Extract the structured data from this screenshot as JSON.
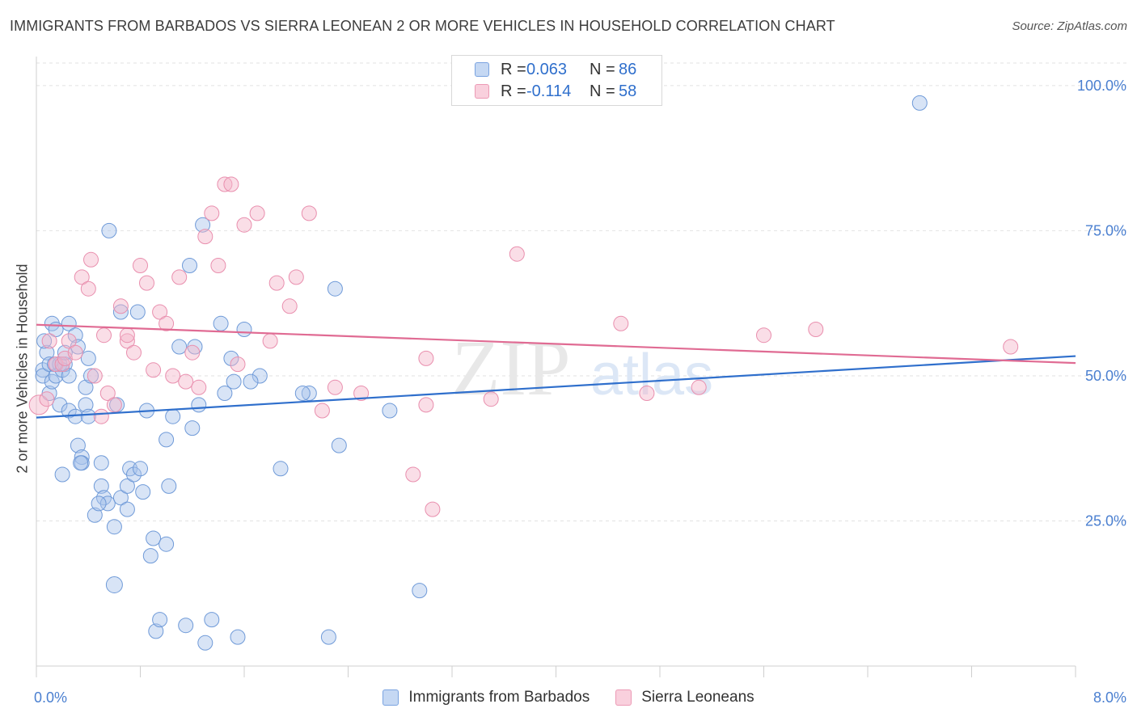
{
  "header": {
    "title": "IMMIGRANTS FROM BARBADOS VS SIERRA LEONEAN 2 OR MORE VEHICLES IN HOUSEHOLD CORRELATION CHART",
    "source": "Source: ZipAtlas.com"
  },
  "watermark": {
    "zip": "ZIP",
    "atlas": "atlas"
  },
  "legend": {
    "items": [
      {
        "r_label": "R =",
        "r_value": "0.063",
        "n_label": "N =",
        "n_value": "86"
      },
      {
        "r_label": "R =",
        "r_value": "-0.114",
        "n_label": "N =",
        "n_value": "58"
      }
    ]
  },
  "chart_data": {
    "type": "scatter",
    "title": "IMMIGRANTS FROM BARBADOS VS SIERRA LEONEAN 2 OR MORE VEHICLES IN HOUSEHOLD CORRELATION CHART",
    "xlabel": "",
    "ylabel": "2 or more Vehicles in Household",
    "xlim": [
      0,
      8
    ],
    "ylim": [
      0,
      105
    ],
    "x_tick_labels": [
      "0.0%",
      "8.0%"
    ],
    "y_tick_labels": [
      "25.0%",
      "50.0%",
      "75.0%",
      "100.0%"
    ],
    "y_ticks": [
      25,
      50,
      75,
      100
    ],
    "grid": true,
    "legend_position": "top-center",
    "colors": {
      "blue": "#a9c4ec",
      "blue_line": "#2f6fcc",
      "pink": "#f4b6ca",
      "pink_line": "#e06b93",
      "axis_text": "#4a7fd0"
    },
    "series": [
      {
        "name": "Immigrants from Barbados",
        "color": "#a9c4ec",
        "trend": {
          "x": [
            0,
            8
          ],
          "y": [
            42.8,
            53.4
          ]
        },
        "x": [
          0.05,
          0.05,
          0.08,
          0.1,
          0.1,
          0.12,
          0.12,
          0.15,
          0.15,
          0.18,
          0.18,
          0.2,
          0.2,
          0.22,
          0.25,
          0.25,
          0.25,
          0.3,
          0.3,
          0.32,
          0.32,
          0.35,
          0.35,
          0.38,
          0.38,
          0.4,
          0.4,
          0.42,
          0.45,
          0.5,
          0.5,
          0.52,
          0.55,
          0.6,
          0.6,
          0.62,
          0.65,
          0.65,
          0.7,
          0.7,
          0.72,
          0.75,
          0.8,
          0.82,
          0.85,
          0.88,
          0.9,
          0.92,
          0.95,
          1.0,
          1.0,
          1.02,
          1.05,
          1.1,
          1.15,
          1.2,
          1.22,
          1.25,
          1.28,
          1.3,
          1.35,
          1.45,
          1.5,
          1.55,
          1.6,
          1.72,
          2.1,
          2.25,
          2.3,
          2.72,
          2.95,
          6.8,
          0.06,
          0.14,
          0.22,
          0.34,
          0.48,
          0.56,
          0.78,
          1.18,
          1.42,
          1.52,
          1.65,
          1.88,
          2.05,
          2.33
        ],
        "y": [
          51,
          50,
          54,
          52,
          47,
          49,
          59,
          58,
          50,
          45,
          52,
          51,
          33,
          52,
          50,
          44,
          59,
          43,
          57,
          38,
          55,
          36,
          35,
          48,
          45,
          43,
          53,
          50,
          26,
          31,
          35,
          29,
          28,
          14,
          24,
          45,
          61,
          29,
          31,
          27,
          34,
          33,
          34,
          30,
          44,
          19,
          22,
          6,
          8,
          21,
          39,
          31,
          43,
          55,
          7,
          41,
          55,
          45,
          76,
          4,
          8,
          47,
          53,
          5,
          58,
          50,
          47,
          5,
          65,
          44,
          13,
          97,
          56,
          52,
          54,
          35,
          28,
          75,
          61,
          69,
          59,
          49,
          49,
          34,
          47,
          38
        ],
        "size": [
          9,
          9,
          9,
          9,
          9,
          9,
          9,
          9,
          9,
          9,
          9,
          9,
          9,
          9,
          9,
          9,
          9,
          9,
          9,
          9,
          9,
          9,
          9,
          9,
          9,
          9,
          9,
          9,
          9,
          9,
          9,
          9,
          9,
          10,
          9,
          9,
          9,
          9,
          9,
          9,
          9,
          9,
          9,
          9,
          9,
          9,
          9,
          9,
          9,
          9,
          9,
          9,
          9,
          9,
          9,
          9,
          9,
          9,
          9,
          9,
          9,
          9,
          9,
          9,
          9,
          9,
          9,
          9,
          9,
          9,
          9,
          9,
          9,
          9,
          9,
          9,
          9,
          9,
          9,
          9,
          9,
          9,
          9,
          9,
          9,
          9
        ]
      },
      {
        "name": "Sierra Leoneans",
        "color": "#f4b6ca",
        "trend": {
          "x": [
            0,
            8
          ],
          "y": [
            58.8,
            52.2
          ]
        },
        "x": [
          0.02,
          0.08,
          0.1,
          0.15,
          0.2,
          0.22,
          0.25,
          0.3,
          0.35,
          0.4,
          0.42,
          0.45,
          0.5,
          0.52,
          0.55,
          0.6,
          0.65,
          0.7,
          0.7,
          0.75,
          0.8,
          0.85,
          0.9,
          0.95,
          1.0,
          1.05,
          1.1,
          1.15,
          1.2,
          1.25,
          1.3,
          1.35,
          1.4,
          1.45,
          1.5,
          1.55,
          1.6,
          1.7,
          1.8,
          1.85,
          1.95,
          2.0,
          2.1,
          2.2,
          2.3,
          2.5,
          2.9,
          3.0,
          3.0,
          3.05,
          3.5,
          3.7,
          4.5,
          4.7,
          5.1,
          5.6,
          6.0,
          7.5
        ],
        "y": [
          45,
          46,
          56,
          52,
          52,
          53,
          56,
          54,
          67,
          65,
          70,
          50,
          43,
          57,
          47,
          45,
          62,
          56,
          57,
          54,
          69,
          66,
          51,
          61,
          59,
          50,
          67,
          49,
          54,
          48,
          74,
          78,
          69,
          83,
          83,
          52,
          76,
          78,
          56,
          66,
          62,
          67,
          78,
          44,
          48,
          47,
          33,
          53,
          45,
          27,
          46,
          71,
          59,
          47,
          48,
          57,
          58,
          55
        ],
        "size": [
          12,
          9,
          9,
          9,
          9,
          9,
          9,
          9,
          9,
          9,
          9,
          9,
          9,
          9,
          9,
          9,
          9,
          9,
          9,
          9,
          9,
          9,
          9,
          9,
          9,
          9,
          9,
          9,
          9,
          9,
          9,
          9,
          9,
          9,
          9,
          9,
          9,
          9,
          9,
          9,
          9,
          9,
          9,
          9,
          9,
          9,
          9,
          9,
          9,
          9,
          9,
          9,
          9,
          9,
          9,
          9,
          9,
          9
        ]
      }
    ]
  }
}
